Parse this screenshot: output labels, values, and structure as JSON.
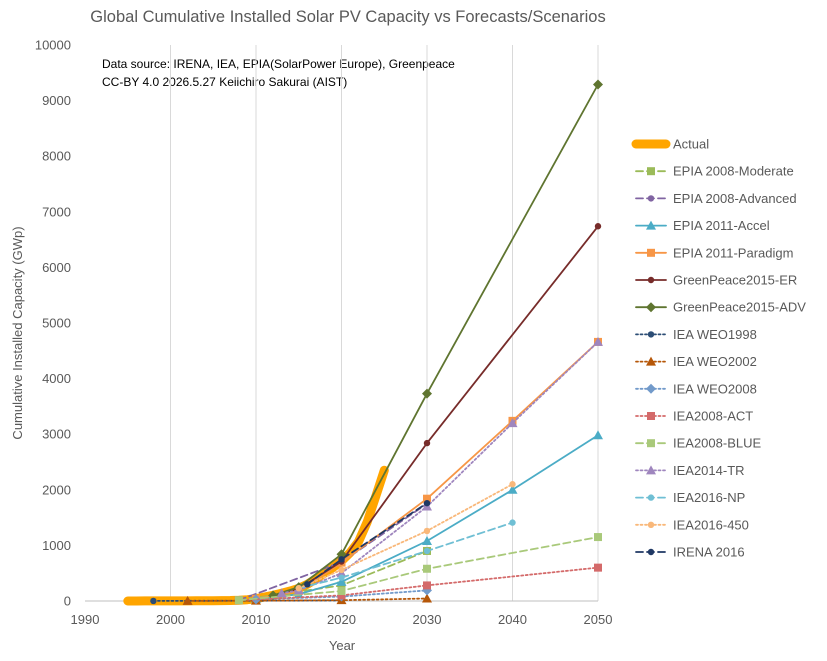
{
  "chart_data": {
    "type": "line",
    "title": "Global Cumulative Installed Solar PV Capacity vs Forecasts/Scenarios",
    "xlabel": "Year",
    "ylabel": "Cumulative Installed Capacity (GWp)",
    "xlim": [
      1990,
      2050
    ],
    "ylim": [
      0,
      10000
    ],
    "xticks": [
      "1990",
      "2000",
      "2010",
      "2020",
      "2030",
      "2040",
      "2050"
    ],
    "yticks": [
      "0",
      "1000",
      "2000",
      "3000",
      "4000",
      "5000",
      "6000",
      "7000",
      "8000",
      "9000",
      "10000"
    ],
    "grid": "vertical",
    "legend_position": "right",
    "annotation": [
      "Data source: IRENA, IEA, EPIA(SolarPower Europe), Greenpeace",
      "CC-BY 4.0 2026.5.27 Keiichiro Sakurai (AIST)"
    ],
    "series": [
      {
        "name": "Actual",
        "color": "#FFA500",
        "dash": "solid",
        "marker": "none",
        "width": 9,
        "points": [
          [
            1995,
            0.6
          ],
          [
            1996,
            0.8
          ],
          [
            1997,
            1
          ],
          [
            1998,
            1.2
          ],
          [
            1999,
            1.4
          ],
          [
            2000,
            1.6
          ],
          [
            2001,
            2
          ],
          [
            2002,
            2.5
          ],
          [
            2003,
            3
          ],
          [
            2004,
            4
          ],
          [
            2005,
            5.5
          ],
          [
            2006,
            7
          ],
          [
            2007,
            9
          ],
          [
            2008,
            15
          ],
          [
            2009,
            23
          ],
          [
            2010,
            41
          ],
          [
            2011,
            72
          ],
          [
            2012,
            102
          ],
          [
            2013,
            140
          ],
          [
            2014,
            180
          ],
          [
            2015,
            228
          ],
          [
            2016,
            300
          ],
          [
            2017,
            400
          ],
          [
            2018,
            500
          ],
          [
            2019,
            600
          ],
          [
            2020,
            720
          ],
          [
            2021,
            870
          ],
          [
            2022,
            1070
          ],
          [
            2023,
            1420
          ],
          [
            2024,
            1880
          ],
          [
            2025,
            2350
          ]
        ]
      },
      {
        "name": "EPIA 2008-Moderate",
        "color": "#9BBB59",
        "dash": "dash",
        "marker": "square",
        "points": [
          [
            2008,
            15
          ],
          [
            2020,
            280
          ],
          [
            2030,
            900
          ]
        ]
      },
      {
        "name": "EPIA 2008-Advanced",
        "color": "#8064A2",
        "dash": "dash",
        "marker": "circle",
        "points": [
          [
            2008,
            15
          ],
          [
            2020,
            700
          ],
          [
            2030,
            1750
          ]
        ]
      },
      {
        "name": "EPIA 2011-Accel",
        "color": "#4BACC6",
        "dash": "solid",
        "marker": "triangle",
        "points": [
          [
            2010,
            40
          ],
          [
            2015,
            120
          ],
          [
            2020,
            345
          ],
          [
            2030,
            1080
          ],
          [
            2040,
            2000
          ],
          [
            2050,
            2980
          ]
        ]
      },
      {
        "name": "EPIA 2011-Paradigm",
        "color": "#F79646",
        "dash": "solid",
        "marker": "square",
        "points": [
          [
            2010,
            40
          ],
          [
            2015,
            180
          ],
          [
            2020,
            690
          ],
          [
            2030,
            1840
          ],
          [
            2040,
            3240
          ],
          [
            2050,
            4660
          ]
        ]
      },
      {
        "name": "GreenPeace2015-ER",
        "color": "#772C2A",
        "dash": "solid",
        "marker": "circle",
        "points": [
          [
            2012,
            100
          ],
          [
            2015,
            220
          ],
          [
            2020,
            710
          ],
          [
            2030,
            2840
          ],
          [
            2050,
            6740
          ]
        ]
      },
      {
        "name": "GreenPeace2015-ADV",
        "color": "#5F7530",
        "dash": "solid",
        "marker": "diamond",
        "points": [
          [
            2012,
            100
          ],
          [
            2015,
            250
          ],
          [
            2020,
            840
          ],
          [
            2030,
            3730
          ],
          [
            2050,
            9290
          ]
        ]
      },
      {
        "name": "IEA WEO1998",
        "color": "#2C4D75",
        "dash": "dot",
        "marker": "circle",
        "points": [
          [
            1998,
            1
          ],
          [
            2010,
            5
          ],
          [
            2020,
            10
          ]
        ]
      },
      {
        "name": "IEA WEO2002",
        "color": "#B65708",
        "dash": "dot",
        "marker": "triangle",
        "points": [
          [
            2002,
            2
          ],
          [
            2010,
            6
          ],
          [
            2020,
            15
          ],
          [
            2030,
            45
          ]
        ]
      },
      {
        "name": "IEA WEO2008",
        "color": "#729ACA",
        "dash": "dot",
        "marker": "diamond",
        "points": [
          [
            2010,
            30
          ],
          [
            2020,
            80
          ],
          [
            2030,
            190
          ]
        ]
      },
      {
        "name": "IEA2008-ACT",
        "color": "#D46A6A",
        "dash": "dot",
        "marker": "square",
        "points": [
          [
            2008,
            15
          ],
          [
            2020,
            100
          ],
          [
            2030,
            280
          ],
          [
            2050,
            600
          ]
        ]
      },
      {
        "name": "IEA2008-BLUE",
        "color": "#A9C97A",
        "dash": "dash",
        "marker": "square",
        "points": [
          [
            2008,
            15
          ],
          [
            2020,
            180
          ],
          [
            2030,
            580
          ],
          [
            2050,
            1150
          ]
        ]
      },
      {
        "name": "IEA2014-TR",
        "color": "#9F86BE",
        "dash": "dot",
        "marker": "triangle",
        "points": [
          [
            2013,
            140
          ],
          [
            2015,
            190
          ],
          [
            2020,
            500
          ],
          [
            2030,
            1700
          ],
          [
            2040,
            3200
          ],
          [
            2050,
            4660
          ]
        ]
      },
      {
        "name": "IEA2016-NP",
        "color": "#6FBFD4",
        "dash": "dash",
        "marker": "circle",
        "points": [
          [
            2015,
            230
          ],
          [
            2020,
            420
          ],
          [
            2030,
            900
          ],
          [
            2040,
            1410
          ]
        ]
      },
      {
        "name": "IEA2016-450",
        "color": "#F9B87A",
        "dash": "dot",
        "marker": "circle",
        "points": [
          [
            2015,
            230
          ],
          [
            2020,
            560
          ],
          [
            2030,
            1260
          ],
          [
            2040,
            2100
          ]
        ]
      },
      {
        "name": "IRENA 2016",
        "color": "#1F3864",
        "dash": "dash",
        "marker": "circle",
        "points": [
          [
            2016,
            300
          ],
          [
            2020,
            750
          ],
          [
            2030,
            1760
          ]
        ]
      }
    ]
  }
}
